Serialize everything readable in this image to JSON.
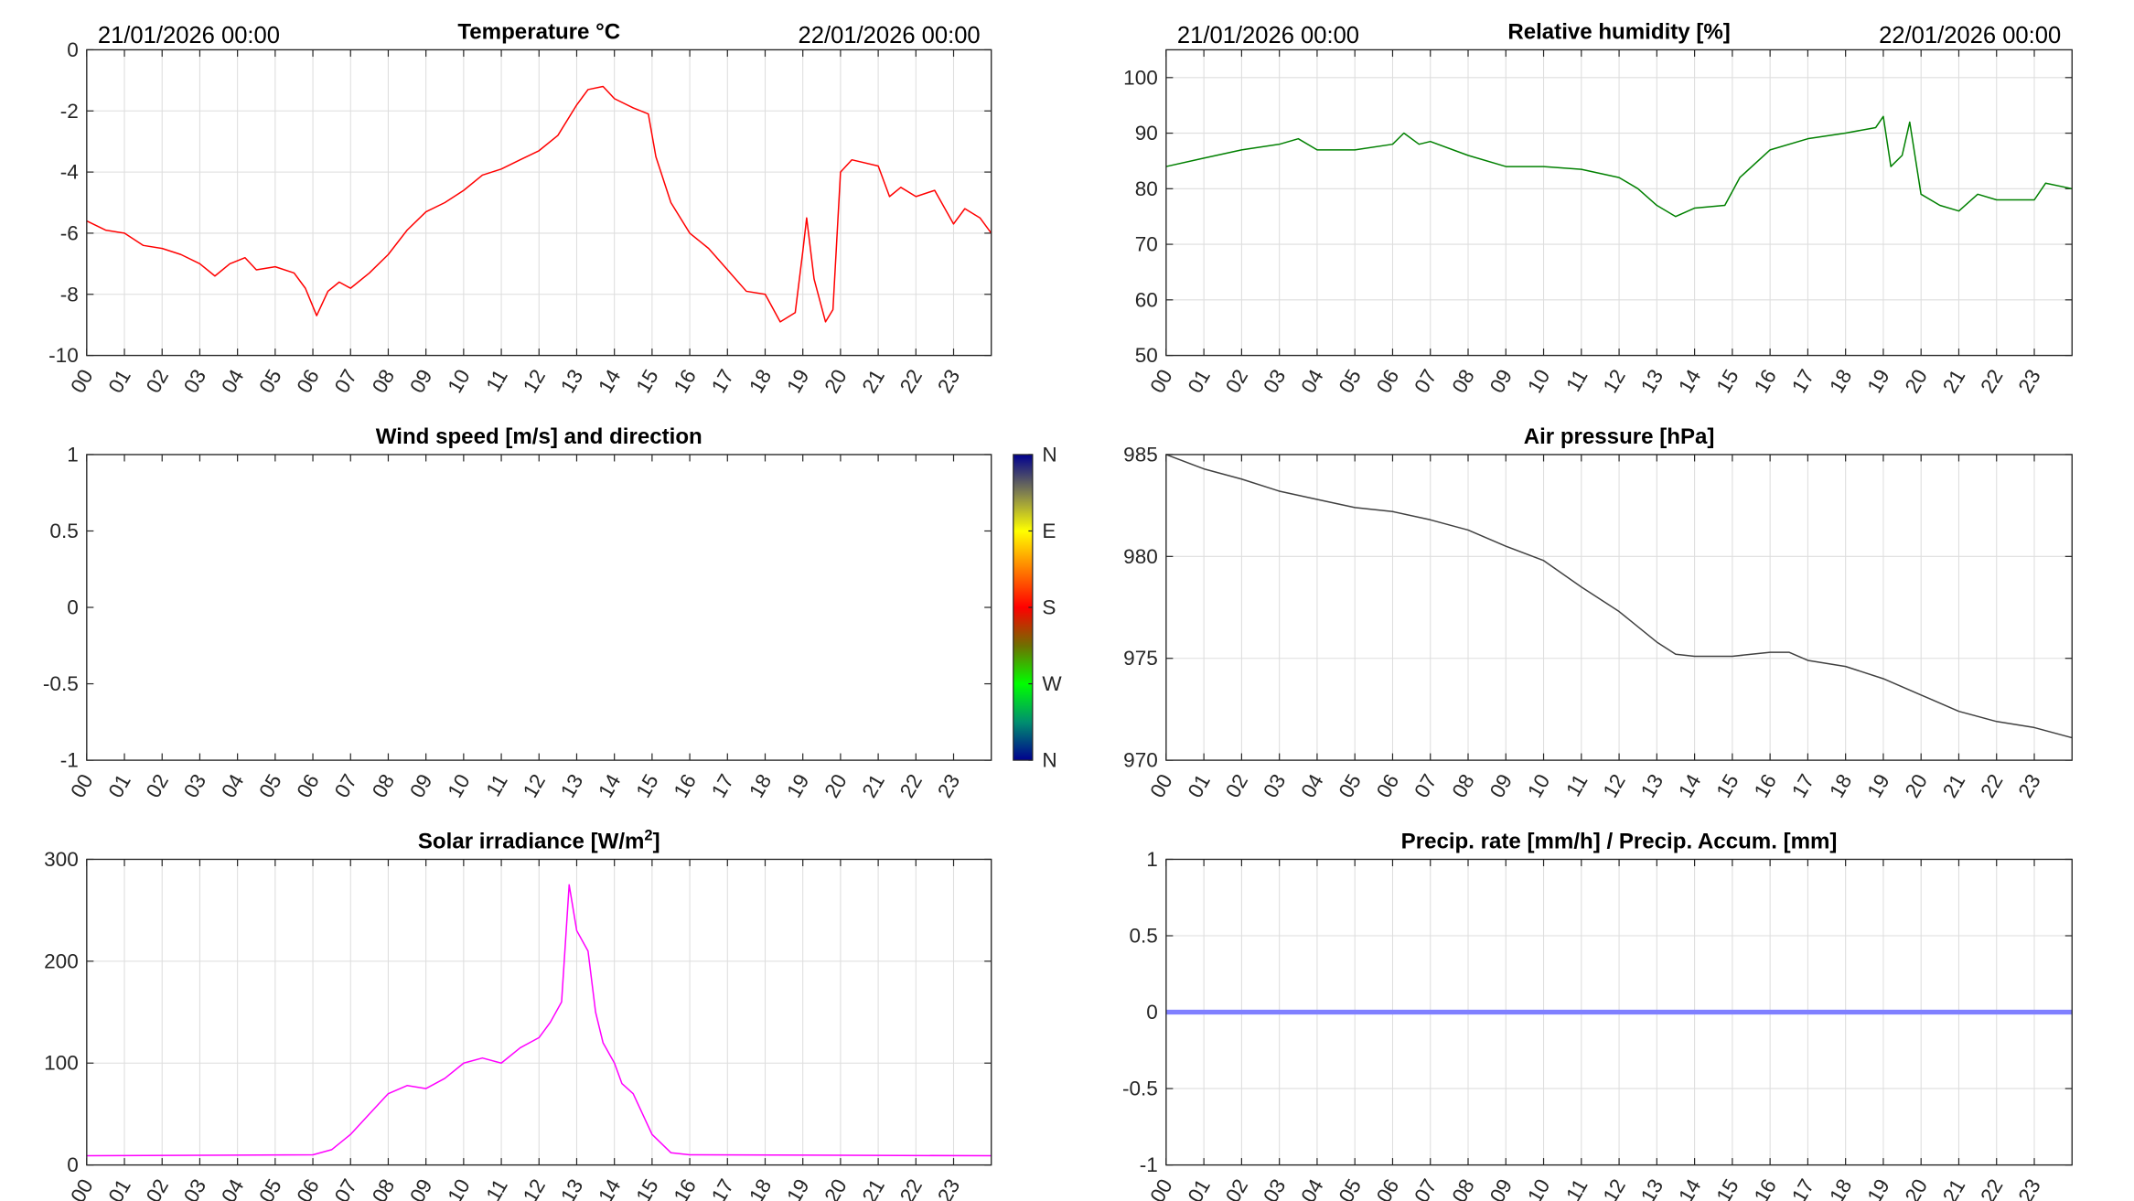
{
  "chart_data": [
    {
      "id": "temperature",
      "type": "line",
      "title": "Temperature °C",
      "date_start": "21/01/2026 00:00",
      "date_end": "22/01/2026 00:00",
      "xlim": [
        0,
        24
      ],
      "ylim": [
        -10,
        0
      ],
      "yticks": [
        -10,
        -8,
        -6,
        -4,
        -2,
        0
      ],
      "color": "#ff0000",
      "grid": true,
      "x": [
        0,
        0.5,
        1,
        1.5,
        2,
        2.5,
        3,
        3.4,
        3.8,
        4.2,
        4.5,
        5,
        5.5,
        5.8,
        6.1,
        6.4,
        6.7,
        7,
        7.5,
        8,
        8.5,
        9,
        9.5,
        10,
        10.5,
        11,
        11.5,
        12,
        12.5,
        13,
        13.3,
        13.7,
        14,
        14.5,
        14.9,
        15.1,
        15.5,
        16,
        16.5,
        17,
        17.5,
        18,
        18.4,
        18.8,
        19,
        19.1,
        19.3,
        19.6,
        19.8,
        20,
        20.3,
        21,
        21.3,
        21.6,
        22,
        22.5,
        23,
        23.3,
        23.7,
        24
      ],
      "y": [
        -5.6,
        -5.9,
        -6.0,
        -6.4,
        -6.5,
        -6.7,
        -7.0,
        -7.4,
        -7.0,
        -6.8,
        -7.2,
        -7.1,
        -7.3,
        -7.8,
        -8.7,
        -7.9,
        -7.6,
        -7.8,
        -7.3,
        -6.7,
        -5.9,
        -5.3,
        -5.0,
        -4.6,
        -4.1,
        -3.9,
        -3.6,
        -3.3,
        -2.8,
        -1.8,
        -1.3,
        -1.2,
        -1.6,
        -1.9,
        -2.1,
        -3.5,
        -5.0,
        -6.0,
        -6.5,
        -7.2,
        -7.9,
        -8.0,
        -8.9,
        -8.6,
        -6.6,
        -5.5,
        -7.5,
        -8.9,
        -8.5,
        -4.0,
        -3.6,
        -3.8,
        -4.8,
        -4.5,
        -4.8,
        -4.6,
        -5.7,
        -5.2,
        -5.5,
        -6.0
      ]
    },
    {
      "id": "humidity",
      "type": "line",
      "title": "Relative humidity [%]",
      "date_start": "21/01/2026 00:00",
      "date_end": "22/01/2026 00:00",
      "xlim": [
        0,
        24
      ],
      "ylim": [
        50,
        105
      ],
      "yticks": [
        50,
        60,
        70,
        80,
        90,
        100
      ],
      "color": "#008000",
      "grid": true,
      "x": [
        0,
        1,
        2,
        3,
        3.5,
        4,
        5,
        6,
        6.3,
        6.7,
        7,
        8,
        9,
        10,
        11,
        12,
        12.5,
        13,
        13.5,
        14,
        14.8,
        15.2,
        16,
        17,
        18,
        18.8,
        19,
        19.2,
        19.5,
        19.7,
        20,
        20.5,
        21,
        21.5,
        22,
        23,
        23.3,
        24
      ],
      "y": [
        84,
        85.5,
        87,
        88,
        89,
        87,
        87,
        88,
        90,
        88,
        88.5,
        86,
        84,
        84,
        83.5,
        82,
        80,
        77,
        75,
        76.5,
        77,
        82,
        87,
        89,
        90,
        91,
        93,
        84,
        86,
        92,
        79,
        77,
        76,
        79,
        78,
        78,
        81,
        80
      ]
    },
    {
      "id": "wind",
      "type": "scatter",
      "title": "Wind speed [m/s] and direction",
      "xlim": [
        0,
        24
      ],
      "ylim": [
        -1,
        1
      ],
      "yticks": [
        -1,
        -0.5,
        0,
        0.5,
        1
      ],
      "grid": false,
      "x": [],
      "y": [],
      "colorbar": {
        "labels": [
          "N",
          "W",
          "S",
          "E",
          "N"
        ],
        "colors": [
          "#00008f",
          "#008f6f",
          "#00ff00",
          "#6f6f00",
          "#ff0000",
          "#ff7f00",
          "#ffff00",
          "#7f7f50",
          "#00008f"
        ]
      }
    },
    {
      "id": "pressure",
      "type": "line",
      "title": "Air pressure [hPa]",
      "xlim": [
        0,
        24
      ],
      "ylim": [
        970,
        985
      ],
      "yticks": [
        970,
        975,
        980,
        985
      ],
      "color": "#404040",
      "grid": true,
      "x": [
        0,
        1,
        2,
        3,
        4,
        5,
        6,
        7,
        8,
        9,
        10,
        11,
        12,
        13,
        13.5,
        14,
        15,
        16,
        16.5,
        17,
        18,
        19,
        20,
        21,
        22,
        23,
        24
      ],
      "y": [
        985,
        984.3,
        983.8,
        983.2,
        982.8,
        982.4,
        982.2,
        981.8,
        981.3,
        980.5,
        979.8,
        978.5,
        977.3,
        975.8,
        975.2,
        975.1,
        975.1,
        975.3,
        975.3,
        974.9,
        974.6,
        974.0,
        973.2,
        972.4,
        971.9,
        971.6,
        971.1
      ]
    },
    {
      "id": "solar",
      "type": "line",
      "title": "Solar irradiance [W/m",
      "title_sup": "2",
      "title_end": "]",
      "xlim": [
        0,
        24
      ],
      "ylim": [
        0,
        300
      ],
      "yticks": [
        0,
        100,
        200,
        300
      ],
      "color": "#ff00ff",
      "grid": true,
      "x": [
        0,
        6,
        6.5,
        7,
        7.5,
        8,
        8.5,
        9,
        9.5,
        10,
        10.5,
        11,
        11.5,
        12,
        12.3,
        12.6,
        12.8,
        13,
        13.3,
        13.5,
        13.7,
        14,
        14.2,
        14.5,
        15,
        15.5,
        16,
        24
      ],
      "y": [
        9,
        10,
        15,
        30,
        50,
        70,
        78,
        75,
        85,
        100,
        105,
        100,
        115,
        125,
        140,
        160,
        275,
        230,
        210,
        150,
        120,
        100,
        80,
        70,
        30,
        12,
        10,
        9
      ]
    },
    {
      "id": "precip",
      "type": "line",
      "title": "Precip. rate [mm/h] / Precip. Accum. [mm]",
      "xlim": [
        0,
        24
      ],
      "ylim": [
        -1,
        1
      ],
      "yticks": [
        -1,
        -0.5,
        0,
        0.5,
        1
      ],
      "color": "#8080ff",
      "grid": true,
      "x": [
        0,
        24
      ],
      "y": [
        0,
        0
      ]
    }
  ],
  "xticklabels": [
    "00",
    "01",
    "02",
    "03",
    "04",
    "05",
    "06",
    "07",
    "08",
    "09",
    "10",
    "11",
    "12",
    "13",
    "14",
    "15",
    "16",
    "17",
    "18",
    "19",
    "20",
    "21",
    "22",
    "23"
  ]
}
